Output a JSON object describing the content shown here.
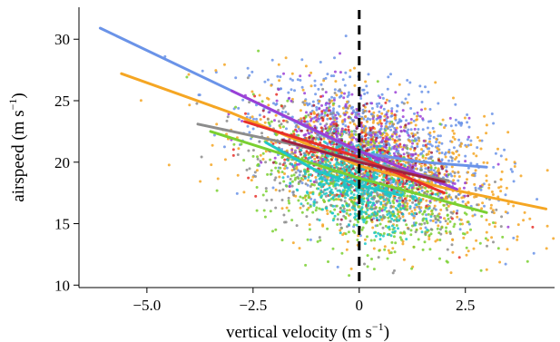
{
  "chart_data": {
    "type": "scatter",
    "title": "",
    "xlabel_main": "vertical velocity (m s",
    "xlabel_sup": "−1",
    "xlabel_end": ")",
    "ylabel_main": "airspeed (m s",
    "ylabel_sup": "−1",
    "ylabel_end": ")",
    "xlim": [
      -6.6,
      4.6
    ],
    "ylim": [
      9.8,
      32.6
    ],
    "x_ticks": [
      {
        "value": -5.0,
        "label": "−5.0"
      },
      {
        "value": -2.5,
        "label": "−2.5"
      },
      {
        "value": 0,
        "label": "0"
      },
      {
        "value": 2.5,
        "label": "2.5"
      }
    ],
    "y_ticks": [
      {
        "value": 10,
        "label": "10"
      },
      {
        "value": 15,
        "label": "15"
      },
      {
        "value": 20,
        "label": "20"
      },
      {
        "value": 25,
        "label": "25"
      },
      {
        "value": 30,
        "label": "30"
      }
    ],
    "grid": false,
    "reference_line": {
      "x": 0,
      "style": "dashed",
      "color": "#000000"
    },
    "series": [
      {
        "color": "#6a93e8",
        "point_cloud": {
          "x_center": 0.3,
          "x_spread": 1.4,
          "y_center": 21.2,
          "y_spread": 2.6,
          "count": 900
        },
        "fit": [
          [
            -6.1,
            30.9
          ],
          [
            -3.0,
            25.8
          ],
          [
            0.0,
            20.8
          ],
          [
            1.5,
            20.0
          ],
          [
            3.0,
            19.6
          ]
        ]
      },
      {
        "color": "#f5a623",
        "point_cloud": {
          "x_center": 0.5,
          "x_spread": 1.5,
          "y_center": 19.5,
          "y_spread": 2.8,
          "count": 850
        },
        "fit": [
          [
            -5.6,
            27.2
          ],
          [
            -3.0,
            24.0
          ],
          [
            0.0,
            19.7
          ],
          [
            2.0,
            17.9
          ],
          [
            4.4,
            16.2
          ]
        ]
      },
      {
        "color": "#7ad031",
        "point_cloud": {
          "x_center": 0.0,
          "x_spread": 1.2,
          "y_center": 18.0,
          "y_spread": 2.5,
          "count": 650
        },
        "fit": [
          [
            -3.5,
            22.5
          ],
          [
            0.0,
            18.7
          ],
          [
            3.0,
            15.9
          ]
        ]
      },
      {
        "color": "#8c8c8c",
        "point_cloud": {
          "x_center": 0.0,
          "x_spread": 1.3,
          "y_center": 19.2,
          "y_spread": 2.4,
          "count": 450
        },
        "fit": [
          [
            -3.8,
            23.1
          ],
          [
            -1.5,
            21.4
          ],
          [
            0.0,
            20.1
          ],
          [
            2.1,
            18.5
          ]
        ]
      },
      {
        "color": "#1fc7c7",
        "point_cloud": {
          "x_center": 0.0,
          "x_spread": 0.7,
          "y_center": 18.2,
          "y_spread": 1.6,
          "count": 520
        },
        "fit": [
          [
            -2.2,
            21.6
          ],
          [
            -1.0,
            19.3
          ],
          [
            0.0,
            18.1
          ],
          [
            1.0,
            17.3
          ]
        ]
      },
      {
        "color": "#9b3fd6",
        "point_cloud": {
          "x_center": 0.0,
          "x_spread": 1.1,
          "y_center": 21.5,
          "y_spread": 2.1,
          "count": 300
        },
        "fit": [
          [
            -3.0,
            25.8
          ],
          [
            0.0,
            20.9
          ],
          [
            2.3,
            17.8
          ]
        ]
      },
      {
        "color": "#e8302a",
        "point_cloud": {
          "x_center": -0.2,
          "x_spread": 1.0,
          "y_center": 20.3,
          "y_spread": 1.9,
          "count": 220
        },
        "fit": [
          [
            -2.7,
            23.3
          ],
          [
            0.0,
            20.4
          ],
          [
            2.0,
            17.5
          ]
        ]
      },
      {
        "color": "#a02040",
        "point_cloud": {
          "x_center": 0.0,
          "x_spread": 1.0,
          "y_center": 20.0,
          "y_spread": 1.8,
          "count": 120
        },
        "fit": [
          [
            -1.8,
            21.8
          ],
          [
            0.0,
            20.0
          ],
          [
            2.0,
            18.4
          ]
        ]
      }
    ]
  }
}
